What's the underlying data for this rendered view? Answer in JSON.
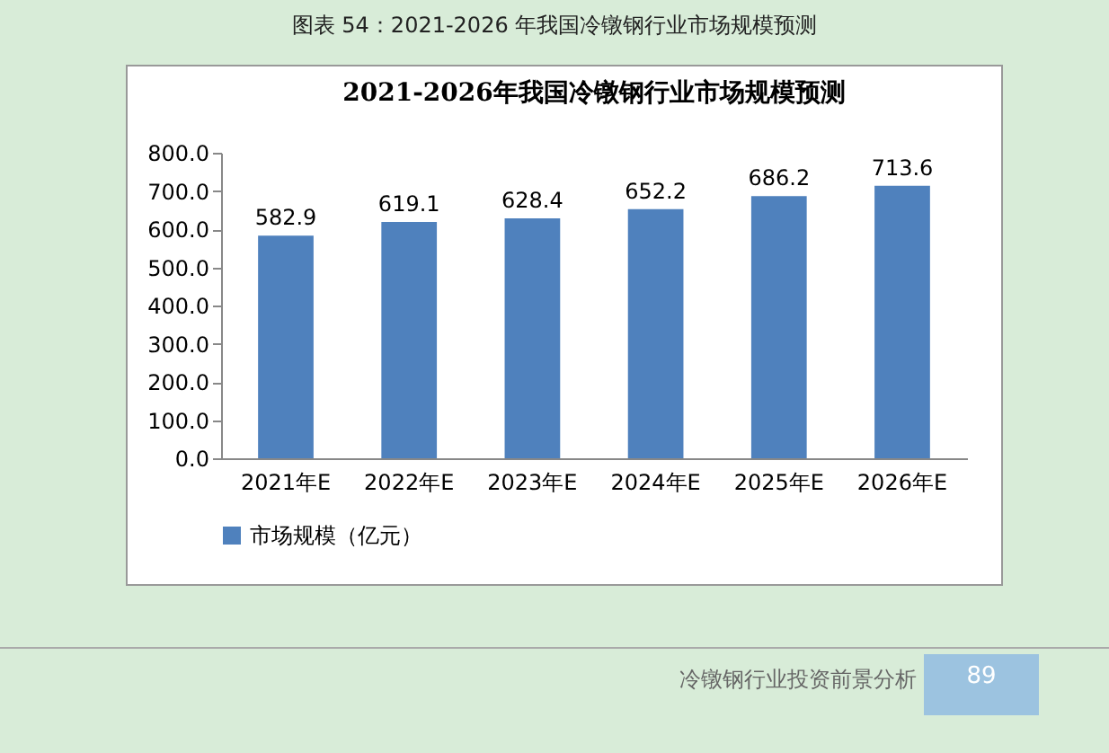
{
  "chart_data": {
    "type": "bar",
    "title": "2021-2026年我国冷镦钢行业市场规模预测",
    "categories": [
      "2021年E",
      "2022年E",
      "2023年E",
      "2024年E",
      "2025年E",
      "2026年E"
    ],
    "series": [
      {
        "name": "市场规模（亿元）",
        "color": "#4f81bd",
        "values": [
          582.9,
          619.1,
          628.4,
          652.2,
          686.2,
          713.6
        ]
      }
    ],
    "ylim": [
      0,
      800
    ],
    "yticks": [
      {
        "value": 0,
        "label": "0.0"
      },
      {
        "value": 100,
        "label": "100.0"
      },
      {
        "value": 200,
        "label": "200.0"
      },
      {
        "value": 300,
        "label": "300.0"
      },
      {
        "value": 400,
        "label": "400.0"
      },
      {
        "value": 500,
        "label": "500.0"
      },
      {
        "value": 600,
        "label": "600.0"
      },
      {
        "value": 700,
        "label": "700.0"
      },
      {
        "value": 800,
        "label": "800.0"
      }
    ],
    "data_labels": true,
    "legend": "bottom",
    "grid": false,
    "annotations": [
      "图表 54：2021-2026 年我国冷镦钢行业市场规模预测",
      "冷镦钢行业投资前景分析",
      "89"
    ]
  }
}
